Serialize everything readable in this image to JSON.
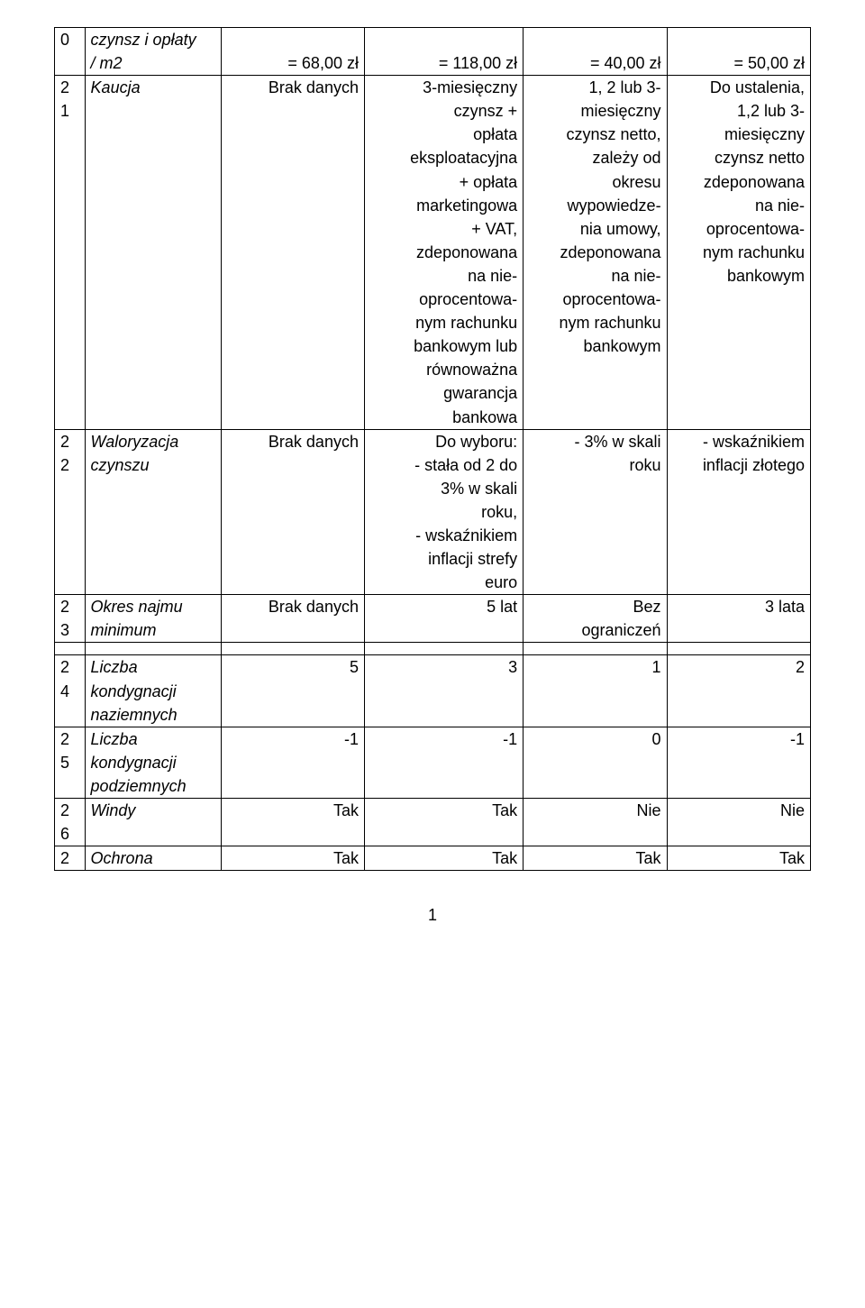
{
  "colors": {
    "text": "#000000",
    "bg": "#ffffff",
    "border": "#000000"
  },
  "font": {
    "family": "Arial",
    "size_pt": 13
  },
  "page_number": "1",
  "rows": {
    "r0": {
      "index": "0",
      "label_l1": "czynsz i opłaty",
      "label_l2": "/ m2",
      "c3": "= 68,00 zł",
      "c4": "= 118,00 zł",
      "c5": "= 40,00 zł",
      "c6": "= 50,00 zł"
    },
    "r1": {
      "index_l1": "2",
      "index_l2": "1",
      "label": "Kaucja",
      "c3": "Brak danych",
      "c4_lines": [
        "3-miesięczny",
        "czynsz +",
        "opłata",
        "eksploatacyjna",
        "+ opłata",
        "marketingowa",
        "+ VAT,",
        "zdeponowana",
        "na nie-",
        "oprocentowa-",
        "nym rachunku",
        "bankowym lub",
        "równoważna",
        "gwarancja",
        "bankowa"
      ],
      "c5_lines": [
        "1, 2 lub 3-",
        "miesięczny",
        "czynsz netto,",
        "zależy od",
        "okresu",
        "wypowiedze-",
        "nia umowy,",
        "zdeponowana",
        "na nie-",
        "oprocentowa-",
        "nym rachunku",
        "bankowym"
      ],
      "c6_lines": [
        "Do ustalenia,",
        "1,2 lub 3-",
        "miesięczny",
        "czynsz netto",
        "zdeponowana",
        "na nie-",
        "oprocentowa-",
        "nym rachunku",
        "bankowym"
      ]
    },
    "r2": {
      "index_l1": "2",
      "index_l2": "2",
      "label_l1": "Waloryzacja",
      "label_l2": "czynszu",
      "c3": "Brak danych",
      "c4_lines": [
        "Do wyboru:",
        "- stała od 2 do",
        "3% w skali",
        "roku,",
        "- wskaźnikiem",
        "inflacji strefy",
        "euro"
      ],
      "c5_lines": [
        "- 3% w skali",
        "roku"
      ],
      "c6_lines": [
        "- wskaźnikiem",
        "inflacji złotego"
      ]
    },
    "r3": {
      "index_l1": "2",
      "index_l2": "3",
      "label_l1": "Okres najmu",
      "label_l2": "minimum",
      "c3": "Brak danych",
      "c4": "5 lat",
      "c5_lines": [
        "Bez",
        "ograniczeń"
      ],
      "c6": "3 lata"
    },
    "r4": {
      "index_l1": "2",
      "index_l2": "4",
      "label_l1": "Liczba",
      "label_l2": "kondygnacji",
      "label_l3": "naziemnych",
      "c3": "5",
      "c4": "3",
      "c5": "1",
      "c6": "2"
    },
    "r5": {
      "index_l1": "2",
      "index_l2": "5",
      "label_l1": " Liczba",
      "label_l2": "kondygnacji",
      "label_l3": "podziemnych",
      "c3": "-1",
      "c4": "-1",
      "c5": "0",
      "c6": "-1"
    },
    "r6": {
      "index_l1": "2",
      "index_l2": "6",
      "label": "Windy",
      "c3": "Tak",
      "c4": "Tak",
      "c5": "Nie",
      "c6": "Nie"
    },
    "r7": {
      "index": "2",
      "label": "Ochrona",
      "c3": "Tak",
      "c4": "Tak",
      "c5": "Tak",
      "c6": "Tak"
    }
  }
}
